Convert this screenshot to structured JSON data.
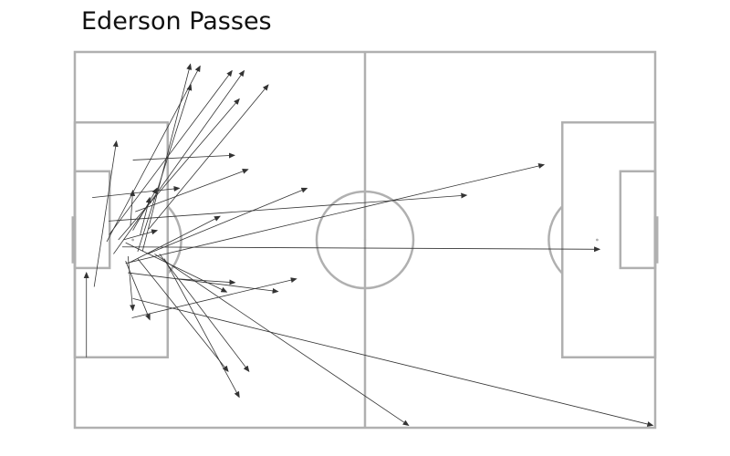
{
  "chart_data": {
    "type": "pass-map",
    "title": "Ederson Passes",
    "pitch": {
      "length": 120,
      "width": 80,
      "line_color": "#b0b0b0"
    },
    "arrow_color": "#333333",
    "passes": [
      {
        "start": [
          4.0,
          30.0
        ],
        "end": [
          8.6,
          61.0
        ]
      },
      {
        "start": [
          2.4,
          15.0
        ],
        "end": [
          2.4,
          33.0
        ]
      },
      {
        "start": [
          12.0,
          57.0
        ],
        "end": [
          33.0,
          58.0
        ]
      },
      {
        "start": [
          3.6,
          49.0
        ],
        "end": [
          21.6,
          51.0
        ]
      },
      {
        "start": [
          10.5,
          39.4
        ],
        "end": [
          31.4,
          28.9
        ]
      },
      {
        "start": [
          11.8,
          23.4
        ],
        "end": [
          45.8,
          31.7
        ]
      },
      {
        "start": [
          14.0,
          37.6
        ],
        "end": [
          23.9,
          77.4
        ]
      },
      {
        "start": [
          21.2,
          31.7
        ],
        "end": [
          33.1,
          30.9
        ]
      },
      {
        "start": [
          15.3,
          42.3
        ],
        "end": [
          40.0,
          73.0
        ]
      },
      {
        "start": [
          6.6,
          39.6
        ],
        "end": [
          25.9,
          77.0
        ]
      },
      {
        "start": [
          7.1,
          41.1
        ],
        "end": [
          32.5,
          76.0
        ]
      },
      {
        "start": [
          8.0,
          37.0
        ],
        "end": [
          35.0,
          76.0
        ]
      },
      {
        "start": [
          11.0,
          33.0
        ],
        "end": [
          42.0,
          29.0
        ]
      },
      {
        "start": [
          13.0,
          37.5
        ],
        "end": [
          24.0,
          73.0
        ]
      },
      {
        "start": [
          9.0,
          40.0
        ],
        "end": [
          34.0,
          70.0
        ]
      },
      {
        "start": [
          13.0,
          36.0
        ],
        "end": [
          31.7,
          12.0
        ]
      },
      {
        "start": [
          17.5,
          37.0
        ],
        "end": [
          36.0,
          12.0
        ]
      },
      {
        "start": [
          18.5,
          36.0
        ],
        "end": [
          34.0,
          6.5
        ]
      },
      {
        "start": [
          16.5,
          37.0
        ],
        "end": [
          69.0,
          0.5
        ]
      },
      {
        "start": [
          12.0,
          27.5
        ],
        "end": [
          119.5,
          0.5
        ]
      },
      {
        "start": [
          15.0,
          37.0
        ],
        "end": [
          48.0,
          51.0
        ]
      },
      {
        "start": [
          7.0,
          44.0
        ],
        "end": [
          81.0,
          49.5
        ]
      },
      {
        "start": [
          10.5,
          35.0
        ],
        "end": [
          97.0,
          56.0
        ]
      },
      {
        "start": [
          9.8,
          38.5
        ],
        "end": [
          108.5,
          38.0
        ]
      },
      {
        "start": [
          12.5,
          46.0
        ],
        "end": [
          35.8,
          55.0
        ]
      },
      {
        "start": [
          11.0,
          35.0
        ],
        "end": [
          30.0,
          45.0
        ]
      },
      {
        "start": [
          10.0,
          40.0
        ],
        "end": [
          17.0,
          42.0
        ]
      },
      {
        "start": [
          13.5,
          41.0
        ],
        "end": [
          15.5,
          49.0
        ]
      },
      {
        "start": [
          11.0,
          36.5
        ],
        "end": [
          12.0,
          25.0
        ]
      },
      {
        "start": [
          10.5,
          35.5
        ],
        "end": [
          15.5,
          23.0
        ]
      },
      {
        "start": [
          12.0,
          42.0
        ],
        "end": [
          17.0,
          51.0
        ]
      },
      {
        "start": [
          11.5,
          43.0
        ],
        "end": [
          12.0,
          50.5
        ]
      }
    ]
  }
}
